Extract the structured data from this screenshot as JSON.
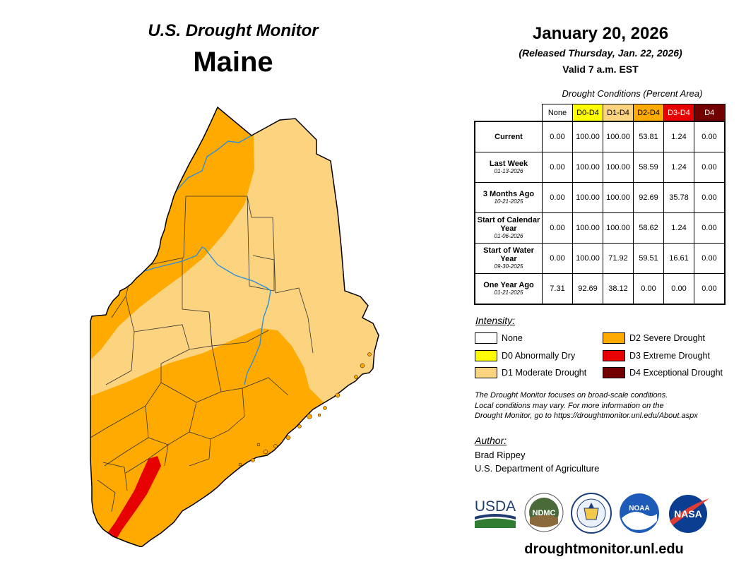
{
  "header": {
    "program_title": "U.S. Drought Monitor",
    "state": "Maine",
    "date": "January 20, 2026",
    "released": "(Released Thursday, Jan. 22, 2026)",
    "valid": "Valid 7 a.m. EST"
  },
  "table": {
    "caption": "Drought Conditions (Percent Area)",
    "columns": [
      {
        "label": "None",
        "color": "#ffffff",
        "text_color": "#000000"
      },
      {
        "label": "D0-D4",
        "color": "#ffff00",
        "text_color": "#000000"
      },
      {
        "label": "D1-D4",
        "color": "#fcd37f",
        "text_color": "#000000"
      },
      {
        "label": "D2-D4",
        "color": "#ffaa00",
        "text_color": "#000000"
      },
      {
        "label": "D3-D4",
        "color": "#e60000",
        "text_color": "#ffffff"
      },
      {
        "label": "D4",
        "color": "#730000",
        "text_color": "#ffffff"
      }
    ],
    "rows": [
      {
        "label": "Current",
        "sublabel": "",
        "values": [
          "0.00",
          "100.00",
          "100.00",
          "53.81",
          "1.24",
          "0.00"
        ]
      },
      {
        "label": "Last Week",
        "sublabel": "01-13-2026",
        "values": [
          "0.00",
          "100.00",
          "100.00",
          "58.59",
          "1.24",
          "0.00"
        ]
      },
      {
        "label": "3 Months Ago",
        "sublabel": "10-21-2025",
        "values": [
          "0.00",
          "100.00",
          "100.00",
          "92.69",
          "35.78",
          "0.00"
        ]
      },
      {
        "label": "Start of Calendar Year",
        "sublabel": "01-06-2026",
        "values": [
          "0.00",
          "100.00",
          "100.00",
          "58.62",
          "1.24",
          "0.00"
        ]
      },
      {
        "label": "Start of Water Year",
        "sublabel": "09-30-2025",
        "values": [
          "0.00",
          "100.00",
          "71.92",
          "59.51",
          "16.61",
          "0.00"
        ]
      },
      {
        "label": "One Year Ago",
        "sublabel": "01-21-2025",
        "values": [
          "7.31",
          "92.69",
          "38.12",
          "0.00",
          "0.00",
          "0.00"
        ]
      }
    ]
  },
  "legend": {
    "title": "Intensity:",
    "items": [
      {
        "label": "None",
        "color": "#ffffff"
      },
      {
        "label": "D0 Abnormally Dry",
        "color": "#ffff00"
      },
      {
        "label": "D1 Moderate Drought",
        "color": "#fcd37f"
      },
      {
        "label": "D2 Severe Drought",
        "color": "#ffaa00"
      },
      {
        "label": "D3 Extreme Drought",
        "color": "#e60000"
      },
      {
        "label": "D4 Exceptional Drought",
        "color": "#730000"
      }
    ]
  },
  "note": {
    "line1": "The Drought Monitor focuses on broad-scale conditions.",
    "line2": "Local conditions may vary. For more information on the",
    "line3": "Drought Monitor, go to https://droughtmonitor.unl.edu/About.aspx"
  },
  "author": {
    "title": "Author:",
    "name": "Brad Rippey",
    "org": "U.S. Department of Agriculture"
  },
  "logos": {
    "usda": "USDA",
    "ndmc": "NDMC",
    "noaa": "NOAA",
    "nasa": "NASA"
  },
  "footer": {
    "url": "droughtmonitor.unl.edu"
  },
  "map_colors": {
    "d1": "#fcd37f",
    "d2": "#ffaa00",
    "d3": "#e60000",
    "river": "#2e8fd8",
    "county_line": "#333333"
  }
}
